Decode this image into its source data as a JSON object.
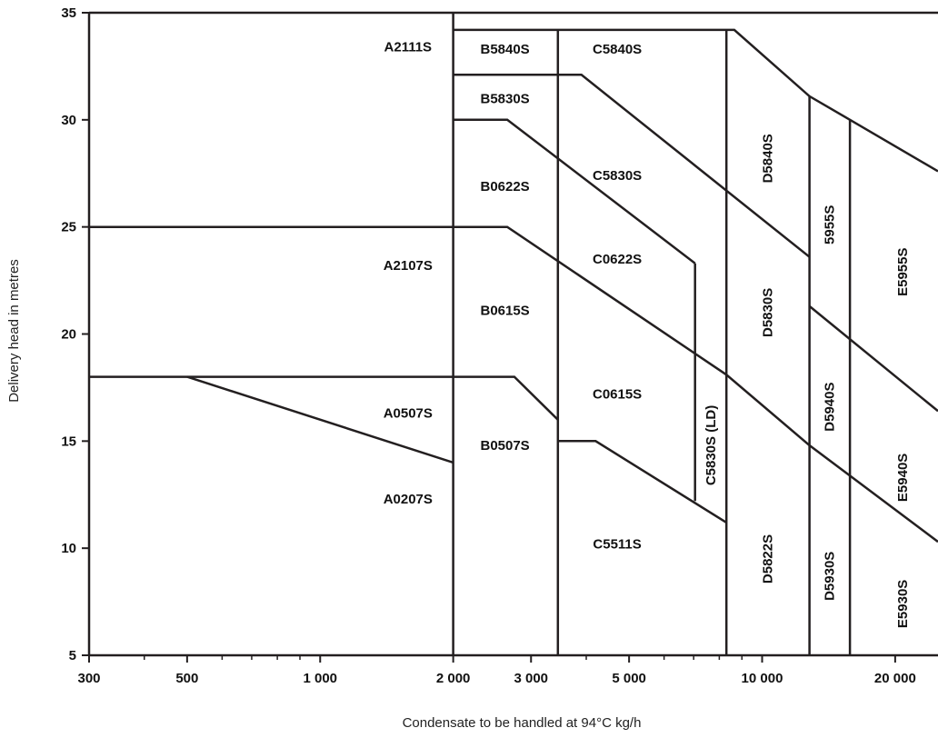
{
  "chart_data": {
    "type": "line",
    "title": "",
    "xlabel": "Condensate to be handled at 94°C kg/h",
    "ylabel": "Delivery head in metres",
    "x_scale": "log",
    "xlim": [
      300,
      25000
    ],
    "ylim": [
      5,
      35
    ],
    "grid": false,
    "legend": "none",
    "line_color": "#231f20",
    "x_ticks": [
      {
        "value": 300,
        "label": "300"
      },
      {
        "value": 500,
        "label": "500"
      },
      {
        "value": 1000,
        "label": "1 000"
      },
      {
        "value": 2000,
        "label": "2 000"
      },
      {
        "value": 3000,
        "label": "3 000"
      },
      {
        "value": 5000,
        "label": "5 000"
      },
      {
        "value": 10000,
        "label": "10 000"
      },
      {
        "value": 20000,
        "label": "20 000"
      }
    ],
    "x_minor_ticks": [
      400,
      600,
      700,
      800,
      900,
      4000,
      6000,
      7000,
      8000,
      9000
    ],
    "y_ticks": [
      {
        "value": 5,
        "label": "5"
      },
      {
        "value": 10,
        "label": "10"
      },
      {
        "value": 15,
        "label": "15"
      },
      {
        "value": 20,
        "label": "20"
      },
      {
        "value": 25,
        "label": "25"
      },
      {
        "value": 30,
        "label": "30"
      },
      {
        "value": 35,
        "label": "35"
      }
    ],
    "boundaries": [
      {
        "points": [
          [
            300,
            35
          ],
          [
            25000,
            35
          ]
        ]
      },
      {
        "points": [
          [
            300,
            25
          ],
          [
            2650,
            25
          ],
          [
            8300,
            18.1
          ],
          [
            12800,
            14.8
          ],
          [
            25000,
            10.3
          ]
        ]
      },
      {
        "points": [
          [
            300,
            18
          ],
          [
            2000,
            18
          ],
          [
            2750,
            18
          ],
          [
            3450,
            16
          ]
        ]
      },
      {
        "points": [
          [
            500,
            18
          ],
          [
            2000,
            14
          ]
        ]
      },
      {
        "points": [
          [
            2000,
            34.2
          ],
          [
            8650,
            34.2
          ],
          [
            12800,
            31.1
          ],
          [
            15800,
            30
          ],
          [
            25000,
            27.6
          ]
        ]
      },
      {
        "points": [
          [
            2000,
            32.1
          ],
          [
            3900,
            32.1
          ],
          [
            12800,
            23.6
          ]
        ]
      },
      {
        "points": [
          [
            2000,
            30
          ],
          [
            2650,
            30
          ],
          [
            7050,
            23.3
          ]
        ]
      },
      {
        "points": [
          [
            3450,
            15
          ],
          [
            4200,
            15
          ],
          [
            8300,
            11.2
          ]
        ]
      },
      {
        "points": [
          [
            12800,
            21.3
          ],
          [
            25000,
            16.4
          ]
        ]
      },
      {
        "points": [
          [
            2000,
            5
          ],
          [
            2000,
            35
          ]
        ]
      },
      {
        "points": [
          [
            3450,
            5
          ],
          [
            3450,
            34.2
          ]
        ]
      },
      {
        "points": [
          [
            7050,
            12.2
          ],
          [
            7050,
            23.3
          ]
        ]
      },
      {
        "points": [
          [
            8300,
            5
          ],
          [
            8300,
            34.2
          ]
        ]
      },
      {
        "points": [
          [
            12800,
            5
          ],
          [
            12800,
            31.1
          ]
        ]
      },
      {
        "points": [
          [
            15800,
            5
          ],
          [
            15800,
            30
          ]
        ]
      }
    ],
    "regions": [
      {
        "label": "A2111S",
        "x": 1580,
        "y": 33.4,
        "orientation": "horizontal"
      },
      {
        "label": "B5840S",
        "x": 2620,
        "y": 33.3,
        "orientation": "horizontal"
      },
      {
        "label": "C5840S",
        "x": 4700,
        "y": 33.3,
        "orientation": "horizontal"
      },
      {
        "label": "B5830S",
        "x": 2620,
        "y": 31.0,
        "orientation": "horizontal"
      },
      {
        "label": "D5840S",
        "x": 10300,
        "y": 28.2,
        "orientation": "vertical"
      },
      {
        "label": "C5830S",
        "x": 4700,
        "y": 27.4,
        "orientation": "horizontal"
      },
      {
        "label": "B0622S",
        "x": 2620,
        "y": 26.9,
        "orientation": "horizontal"
      },
      {
        "label": "5955S",
        "x": 14200,
        "y": 25.1,
        "orientation": "vertical"
      },
      {
        "label": "E5955S",
        "x": 20800,
        "y": 22.9,
        "orientation": "vertical"
      },
      {
        "label": "A2107S",
        "x": 1580,
        "y": 23.2,
        "orientation": "horizontal"
      },
      {
        "label": "C0622S",
        "x": 4700,
        "y": 23.5,
        "orientation": "horizontal"
      },
      {
        "label": "D5830S",
        "x": 10300,
        "y": 21.0,
        "orientation": "vertical"
      },
      {
        "label": "B0615S",
        "x": 2620,
        "y": 21.1,
        "orientation": "horizontal"
      },
      {
        "label": "C0615S",
        "x": 4700,
        "y": 17.2,
        "orientation": "horizontal"
      },
      {
        "label": "D5940S",
        "x": 14200,
        "y": 16.6,
        "orientation": "vertical"
      },
      {
        "label": "C5830S (LD)",
        "x": 7650,
        "y": 14.8,
        "orientation": "vertical"
      },
      {
        "label": "A0507S",
        "x": 1580,
        "y": 16.3,
        "orientation": "horizontal"
      },
      {
        "label": "B0507S",
        "x": 2620,
        "y": 14.8,
        "orientation": "horizontal"
      },
      {
        "label": "E5940S",
        "x": 20800,
        "y": 13.3,
        "orientation": "vertical"
      },
      {
        "label": "A0207S",
        "x": 1580,
        "y": 12.3,
        "orientation": "horizontal"
      },
      {
        "label": "C5511S",
        "x": 4700,
        "y": 10.2,
        "orientation": "horizontal"
      },
      {
        "label": "D5822S",
        "x": 10300,
        "y": 9.5,
        "orientation": "vertical"
      },
      {
        "label": "D5930S",
        "x": 14200,
        "y": 8.7,
        "orientation": "vertical"
      },
      {
        "label": "E5930S",
        "x": 20800,
        "y": 7.4,
        "orientation": "vertical"
      }
    ]
  }
}
